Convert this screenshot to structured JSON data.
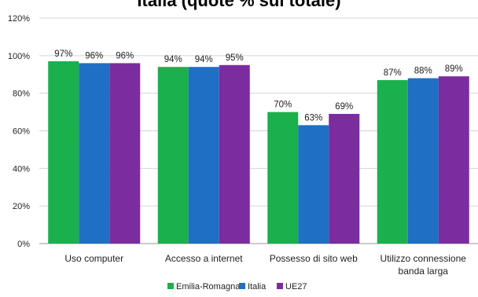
{
  "chart_data": {
    "type": "bar",
    "title": "Italia (quote % sul totale)",
    "categories": [
      "Uso computer",
      "Accesso a internet",
      "Possesso di sito web",
      "Utilizzo connessione banda larga"
    ],
    "category_lines": [
      [
        "Uso computer"
      ],
      [
        "Accesso a internet"
      ],
      [
        "Possesso di sito web"
      ],
      [
        "Utilizzo connessione",
        "banda larga"
      ]
    ],
    "series": [
      {
        "name": "Emilia-Romagna",
        "color": "#1ab04d",
        "values": [
          97,
          94,
          70,
          87
        ]
      },
      {
        "name": "Italia",
        "color": "#1f6fc5",
        "values": [
          96,
          94,
          63,
          88
        ]
      },
      {
        "name": "UE27",
        "color": "#7b2c9e",
        "values": [
          96,
          95,
          69,
          89
        ]
      }
    ],
    "value_suffix": "%",
    "ylim": [
      0,
      120
    ],
    "yticks": [
      0,
      20,
      40,
      60,
      80,
      100,
      120
    ],
    "ytick_labels": [
      "0%",
      "20%",
      "40%",
      "60%",
      "80%",
      "100%",
      "120%"
    ],
    "grid": true,
    "legend_position": "bottom"
  }
}
